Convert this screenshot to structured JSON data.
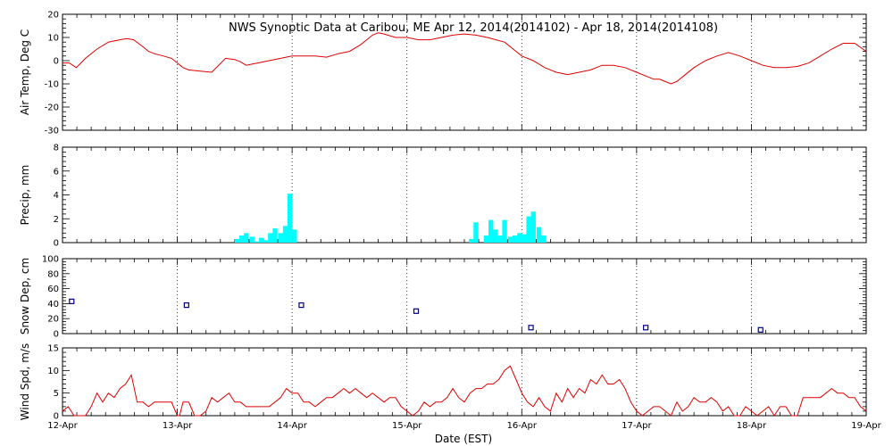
{
  "title": "NWS Synoptic Data at Caribou, ME   Apr 12, 2014(2014102) - Apr 18, 2014(2014108)",
  "x_axis": {
    "label": "Date (EST)",
    "ticks": [
      "12-Apr",
      "13-Apr",
      "14-Apr",
      "15-Apr",
      "16-Apr",
      "17-Apr",
      "18-Apr",
      "19-Apr"
    ],
    "xlim": [
      0,
      7
    ],
    "unit": "days since 12-Apr 00:00 EST"
  },
  "colors": {
    "temp": "#e00000",
    "precip": "#00ffff",
    "snow": "#000080",
    "wind": "#e00000",
    "axis": "#000000"
  },
  "chart_data": [
    {
      "type": "line",
      "ylabel": "Air Temp, Deg C",
      "ylim": [
        -30,
        20
      ],
      "yticks": [
        -30,
        -20,
        -10,
        0,
        10,
        20
      ],
      "grid": "dotted vertical at day boundaries",
      "series": [
        {
          "x": [
            0,
            0.06,
            0.12,
            0.2,
            0.3,
            0.4,
            0.5,
            0.56,
            0.62,
            0.7,
            0.75,
            0.8,
            0.88,
            0.95,
            1.0,
            1.05,
            1.1,
            1.2,
            1.3,
            1.42,
            1.5,
            1.55,
            1.6,
            1.65,
            1.7,
            1.8,
            1.9,
            2.0,
            2.1,
            2.2,
            2.3,
            2.4,
            2.5,
            2.6,
            2.7,
            2.75,
            2.8,
            2.9,
            3.0,
            3.1,
            3.2,
            3.3,
            3.4,
            3.5,
            3.6,
            3.7,
            3.85,
            3.95,
            4.0,
            4.1,
            4.2,
            4.3,
            4.4,
            4.5,
            4.6,
            4.7,
            4.8,
            4.9,
            5.0,
            5.1,
            5.15,
            5.2,
            5.25,
            5.3,
            5.35,
            5.4,
            5.5,
            5.6,
            5.7,
            5.8,
            5.9,
            6.0,
            6.1,
            6.2,
            6.3,
            6.4,
            6.5,
            6.6,
            6.7,
            6.8,
            6.9,
            7.0
          ],
          "values": [
            -1,
            -1,
            -3,
            1,
            5,
            8,
            9,
            9.5,
            9,
            6,
            4,
            3,
            2,
            1,
            -1,
            -3,
            -4,
            -4.5,
            -5,
            1,
            0.5,
            -0.5,
            -2,
            -1.5,
            -1,
            0,
            1,
            2,
            2,
            2,
            1.5,
            3,
            4,
            7,
            11,
            12,
            11.5,
            10,
            10,
            9,
            9,
            10,
            11,
            11.5,
            11,
            10,
            8,
            4,
            2,
            0,
            -3,
            -5,
            -6,
            -5,
            -4,
            -2,
            -2,
            -3,
            -5,
            -7,
            -8,
            -8,
            -9,
            -10,
            -9,
            -7,
            -3,
            0,
            2,
            3.5,
            2,
            0,
            -2,
            -3,
            -3,
            -2.5,
            -1,
            2,
            5,
            7.5,
            7.5,
            4
          ]
        }
      ]
    },
    {
      "type": "bar",
      "ylabel": "Precip, mm",
      "ylim": [
        0,
        8
      ],
      "yticks": [
        0,
        2,
        4,
        6,
        8
      ],
      "grid": "dotted vertical at day boundaries",
      "bin_width_days": 0.0417,
      "series": [
        {
          "x": [
            1.5,
            1.54,
            1.58,
            1.63,
            1.67,
            1.71,
            1.75,
            1.79,
            1.83,
            1.88,
            1.92,
            1.96,
            2.0,
            3.54,
            3.58,
            3.67,
            3.71,
            3.75,
            3.79,
            3.83,
            3.88,
            3.92,
            3.96,
            4.0,
            4.04,
            4.08,
            4.13,
            4.17
          ],
          "values": [
            0.3,
            0.6,
            0.8,
            0.5,
            0.1,
            0.4,
            0.2,
            0.8,
            1.2,
            0.8,
            1.4,
            4.1,
            1.1,
            0.3,
            1.7,
            0.6,
            1.9,
            1.1,
            0.6,
            1.9,
            0.5,
            0.6,
            0.8,
            0.7,
            2.2,
            2.6,
            1.3,
            0.6
          ]
        }
      ]
    },
    {
      "type": "scatter",
      "ylabel": "Snow Dep, cm",
      "ylim": [
        0,
        100
      ],
      "yticks": [
        0,
        20,
        40,
        60,
        80,
        100
      ],
      "grid": "dotted vertical at day boundaries",
      "marker": "open square",
      "series": [
        {
          "x": [
            0.08,
            1.08,
            2.08,
            3.08,
            4.08,
            5.08,
            6.08
          ],
          "values": [
            43,
            38,
            38,
            30,
            8,
            8,
            5
          ]
        }
      ]
    },
    {
      "type": "line",
      "ylabel": "Wind Spd, m/s",
      "ylim": [
        0,
        15
      ],
      "yticks": [
        0,
        5,
        10,
        15
      ],
      "grid": "dotted vertical at day boundaries",
      "series": [
        {
          "x": [
            0,
            0.05,
            0.1,
            0.15,
            0.2,
            0.25,
            0.3,
            0.35,
            0.4,
            0.45,
            0.5,
            0.55,
            0.6,
            0.65,
            0.7,
            0.75,
            0.8,
            0.85,
            0.9,
            0.95,
            1.0,
            1.02,
            1.05,
            1.1,
            1.15,
            1.2,
            1.25,
            1.3,
            1.35,
            1.4,
            1.45,
            1.5,
            1.55,
            1.6,
            1.65,
            1.7,
            1.75,
            1.8,
            1.85,
            1.9,
            1.95,
            2.0,
            2.05,
            2.1,
            2.15,
            2.2,
            2.25,
            2.3,
            2.35,
            2.4,
            2.45,
            2.5,
            2.55,
            2.6,
            2.65,
            2.7,
            2.75,
            2.8,
            2.85,
            2.9,
            2.95,
            3.0,
            3.05,
            3.1,
            3.15,
            3.2,
            3.25,
            3.3,
            3.35,
            3.4,
            3.45,
            3.5,
            3.55,
            3.6,
            3.65,
            3.7,
            3.75,
            3.8,
            3.85,
            3.9,
            3.95,
            4.0,
            4.05,
            4.1,
            4.15,
            4.2,
            4.25,
            4.3,
            4.35,
            4.4,
            4.45,
            4.5,
            4.55,
            4.6,
            4.65,
            4.7,
            4.75,
            4.8,
            4.85,
            4.9,
            4.95,
            5.0,
            5.05,
            5.1,
            5.15,
            5.2,
            5.25,
            5.3,
            5.35,
            5.4,
            5.45,
            5.5,
            5.55,
            5.6,
            5.65,
            5.7,
            5.75,
            5.8,
            5.85,
            5.9,
            5.95,
            6.0,
            6.05,
            6.1,
            6.15,
            6.2,
            6.25,
            6.3,
            6.35,
            6.4,
            6.45,
            6.5,
            6.55,
            6.6,
            6.65,
            6.7,
            6.75,
            6.8,
            6.85,
            6.9,
            6.95,
            7.0
          ],
          "values": [
            1,
            2,
            0,
            0,
            0,
            2,
            5,
            3,
            5,
            4,
            6,
            7,
            9,
            3,
            3,
            2,
            3,
            3,
            3,
            3,
            0,
            0,
            3,
            3,
            0,
            0,
            1,
            4,
            3,
            4,
            5,
            3,
            3,
            2,
            2,
            2,
            2,
            2,
            3,
            4,
            6,
            5,
            5,
            3,
            3,
            2,
            3,
            4,
            4,
            5,
            6,
            5,
            6,
            5,
            4,
            5,
            4,
            3,
            4,
            4,
            2,
            1,
            0,
            1,
            3,
            2,
            3,
            3,
            4,
            6,
            4,
            3,
            5,
            6,
            6,
            7,
            7,
            8,
            10,
            11,
            8,
            5,
            3,
            2,
            4,
            2,
            1,
            5,
            3,
            6,
            4,
            6,
            5,
            8,
            7,
            9,
            7,
            7,
            8,
            6,
            3,
            1,
            0,
            1,
            2,
            2,
            1,
            0,
            3,
            1,
            2,
            4,
            3,
            3,
            4,
            3,
            1,
            2,
            0,
            0,
            2,
            1,
            0,
            1,
            2,
            0,
            2,
            2,
            0,
            0,
            4,
            4,
            4,
            4,
            5,
            6,
            5,
            5,
            4,
            4,
            2,
            1
          ]
        }
      ]
    }
  ]
}
